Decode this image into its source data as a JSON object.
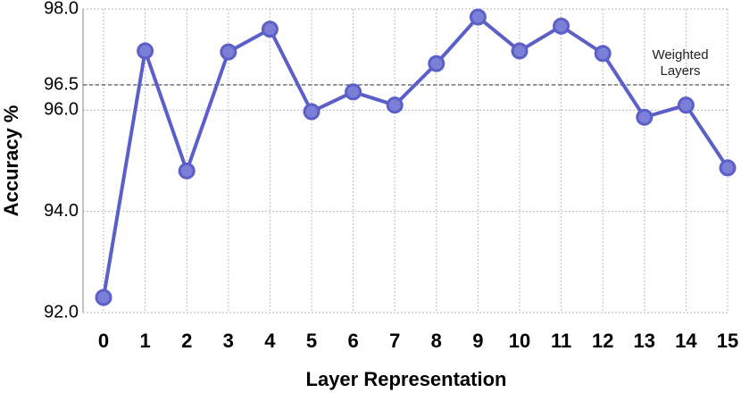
{
  "chart_data": {
    "type": "line",
    "x_label": "Layer Representation",
    "y_label": "Accuracy %",
    "categories": [
      "0",
      "1",
      "2",
      "3",
      "4",
      "5",
      "6",
      "7",
      "8",
      "9",
      "10",
      "11",
      "12",
      "13",
      "14",
      "15"
    ],
    "values": [
      92.3,
      97.17,
      94.8,
      97.15,
      97.6,
      95.97,
      96.36,
      96.1,
      96.92,
      97.84,
      97.17,
      97.66,
      97.12,
      95.86,
      96.1,
      94.86
    ],
    "color": "#5b5fc7",
    "marker_color": "#7b7fd6",
    "ylim": [
      92,
      98
    ],
    "yticks": [
      {
        "value": 92,
        "label": "92.0"
      },
      {
        "value": 94,
        "label": "94.0"
      },
      {
        "value": 96,
        "label": "96.0"
      },
      96.5,
      {
        "value": 98,
        "label": "98.0"
      }
    ],
    "grid": true,
    "annotation": {
      "value": 96.5,
      "lines": [
        "Weighted",
        "Layers"
      ]
    }
  }
}
